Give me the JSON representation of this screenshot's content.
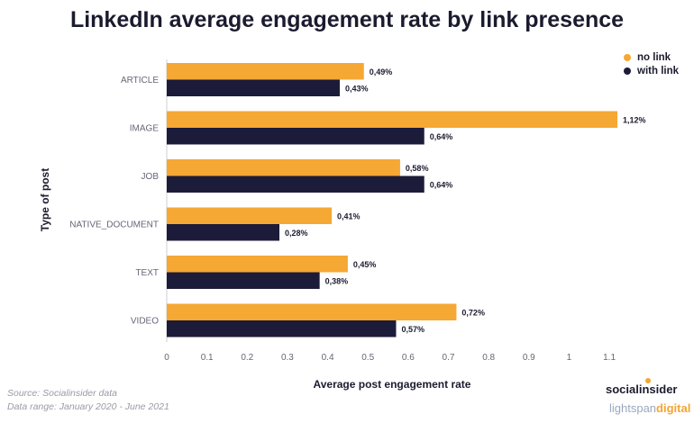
{
  "colors": {
    "no_link": "#F5A834",
    "with_link": "#1C1B3A",
    "axis_text": "#666677"
  },
  "chart_data": {
    "type": "bar",
    "orientation": "horizontal",
    "title": "LinkedIn average engagement rate by link presence",
    "xlabel": "Average post engagement rate",
    "ylabel": "Type of post",
    "categories": [
      "ARTICLE",
      "IMAGE",
      "JOB",
      "NATIVE_DOCUMENT",
      "TEXT",
      "VIDEO"
    ],
    "series": [
      {
        "name": "no link",
        "values": [
          0.49,
          1.12,
          0.58,
          0.41,
          0.45,
          0.72
        ],
        "labels": [
          "0,49%",
          "1,12%",
          "0,58%",
          "0,41%",
          "0,45%",
          "0,72%"
        ]
      },
      {
        "name": "with link",
        "values": [
          0.43,
          0.64,
          0.64,
          0.28,
          0.38,
          0.57
        ],
        "labels": [
          "0,43%",
          "0,64%",
          "0,64%",
          "0,28%",
          "0,38%",
          "0,57%"
        ]
      }
    ],
    "xlim": [
      0,
      1.12
    ],
    "xticks": [
      "0",
      "0.1",
      "0.2",
      "0.3",
      "0.4",
      "0.5",
      "0.6",
      "0.7",
      "0.8",
      "0.9",
      "1",
      "1.1"
    ],
    "grid": false,
    "legend_position": "top-right"
  },
  "footer": {
    "source": "Source: Socialinsider data",
    "range": "Data range: January 2020 - June 2021"
  },
  "branding": {
    "socialinsider": "socialinsider",
    "lightspan": "lightspan",
    "digital": "digital"
  }
}
